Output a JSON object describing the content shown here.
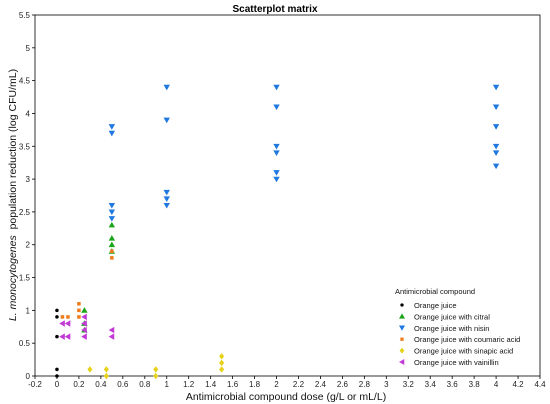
{
  "chart_data": {
    "type": "scatter",
    "title": "Scatterplot matrix",
    "xlabel": "Antimicrobial compound dose (g/L or mL/L)",
    "ylabel_italic": "L. monocytogenes",
    "ylabel_rest": "population reduction (log CFU/mL)",
    "xlim": [
      -0.2,
      4.4
    ],
    "ylim": [
      0,
      5.5
    ],
    "xticks": [
      "-0.2",
      "0",
      "0.2",
      "0.4",
      "0.6",
      "0.8",
      "1",
      "1.2",
      "1.4",
      "1.6",
      "1.8",
      "2",
      "2.2",
      "2.4",
      "2.6",
      "2.8",
      "3",
      "3.2",
      "3.4",
      "3.6",
      "3.8",
      "4",
      "4.2",
      "4.4"
    ],
    "yticks": [
      "0",
      "0.5",
      "1",
      "1.5",
      "2",
      "2.5",
      "3",
      "3.5",
      "4",
      "4.5",
      "5",
      "5.5"
    ],
    "grid": false,
    "legend_title": "Antimicrobial compound",
    "legend_position": "bottom-right",
    "series": [
      {
        "name": "Orange juice",
        "color": "#000000",
        "marker": "circle",
        "points": [
          [
            0,
            1.0
          ],
          [
            0,
            0.9
          ],
          [
            0,
            0.6
          ],
          [
            0,
            0.1
          ],
          [
            0,
            0.0
          ]
        ]
      },
      {
        "name": "Orange juice with citral",
        "color": "#1aa51a",
        "marker": "triangle-up",
        "points": [
          [
            0.25,
            1.0
          ],
          [
            0.25,
            0.8
          ],
          [
            0.25,
            0.7
          ],
          [
            0.5,
            2.3
          ],
          [
            0.5,
            2.1
          ],
          [
            0.5,
            2.0
          ],
          [
            0.5,
            1.9
          ]
        ]
      },
      {
        "name": "Orange juice with nisin",
        "color": "#1f78e0",
        "marker": "triangle-down",
        "points": [
          [
            0.5,
            3.8
          ],
          [
            0.5,
            3.7
          ],
          [
            0.5,
            2.6
          ],
          [
            0.5,
            2.5
          ],
          [
            0.5,
            2.4
          ],
          [
            1,
            4.4
          ],
          [
            1,
            3.9
          ],
          [
            1,
            2.8
          ],
          [
            1,
            2.7
          ],
          [
            1,
            2.6
          ],
          [
            2,
            4.4
          ],
          [
            2,
            4.1
          ],
          [
            2,
            3.5
          ],
          [
            2,
            3.4
          ],
          [
            2,
            3.1
          ],
          [
            2,
            3.0
          ],
          [
            4,
            4.4
          ],
          [
            4,
            4.1
          ],
          [
            4,
            3.8
          ],
          [
            4,
            3.5
          ],
          [
            4,
            3.4
          ],
          [
            4,
            3.2
          ]
        ]
      },
      {
        "name": "Orange juice with coumaric acid",
        "color": "#f07c1c",
        "marker": "square",
        "points": [
          [
            0.05,
            0.9
          ],
          [
            0.1,
            0.9
          ],
          [
            0.2,
            1.1
          ],
          [
            0.2,
            1.0
          ],
          [
            0.2,
            0.9
          ],
          [
            0.5,
            1.9
          ],
          [
            0.5,
            1.8
          ]
        ]
      },
      {
        "name": "Orange juice with sinapic acid",
        "color": "#e6d21a",
        "marker": "diamond",
        "points": [
          [
            0.3,
            0.1
          ],
          [
            0.45,
            0.1
          ],
          [
            0.45,
            0.0
          ],
          [
            0.9,
            0.1
          ],
          [
            0.9,
            0.0
          ],
          [
            1.5,
            0.3
          ],
          [
            1.5,
            0.2
          ],
          [
            1.5,
            0.1
          ]
        ]
      },
      {
        "name": "Orange juice with vainillin",
        "color": "#c23ad6",
        "marker": "triangle-left",
        "points": [
          [
            0.05,
            0.8
          ],
          [
            0.05,
            0.6
          ],
          [
            0.1,
            0.8
          ],
          [
            0.1,
            0.6
          ],
          [
            0.25,
            0.9
          ],
          [
            0.25,
            0.8
          ],
          [
            0.25,
            0.7
          ],
          [
            0.25,
            0.6
          ],
          [
            0.5,
            0.7
          ],
          [
            0.5,
            0.6
          ]
        ]
      }
    ]
  }
}
